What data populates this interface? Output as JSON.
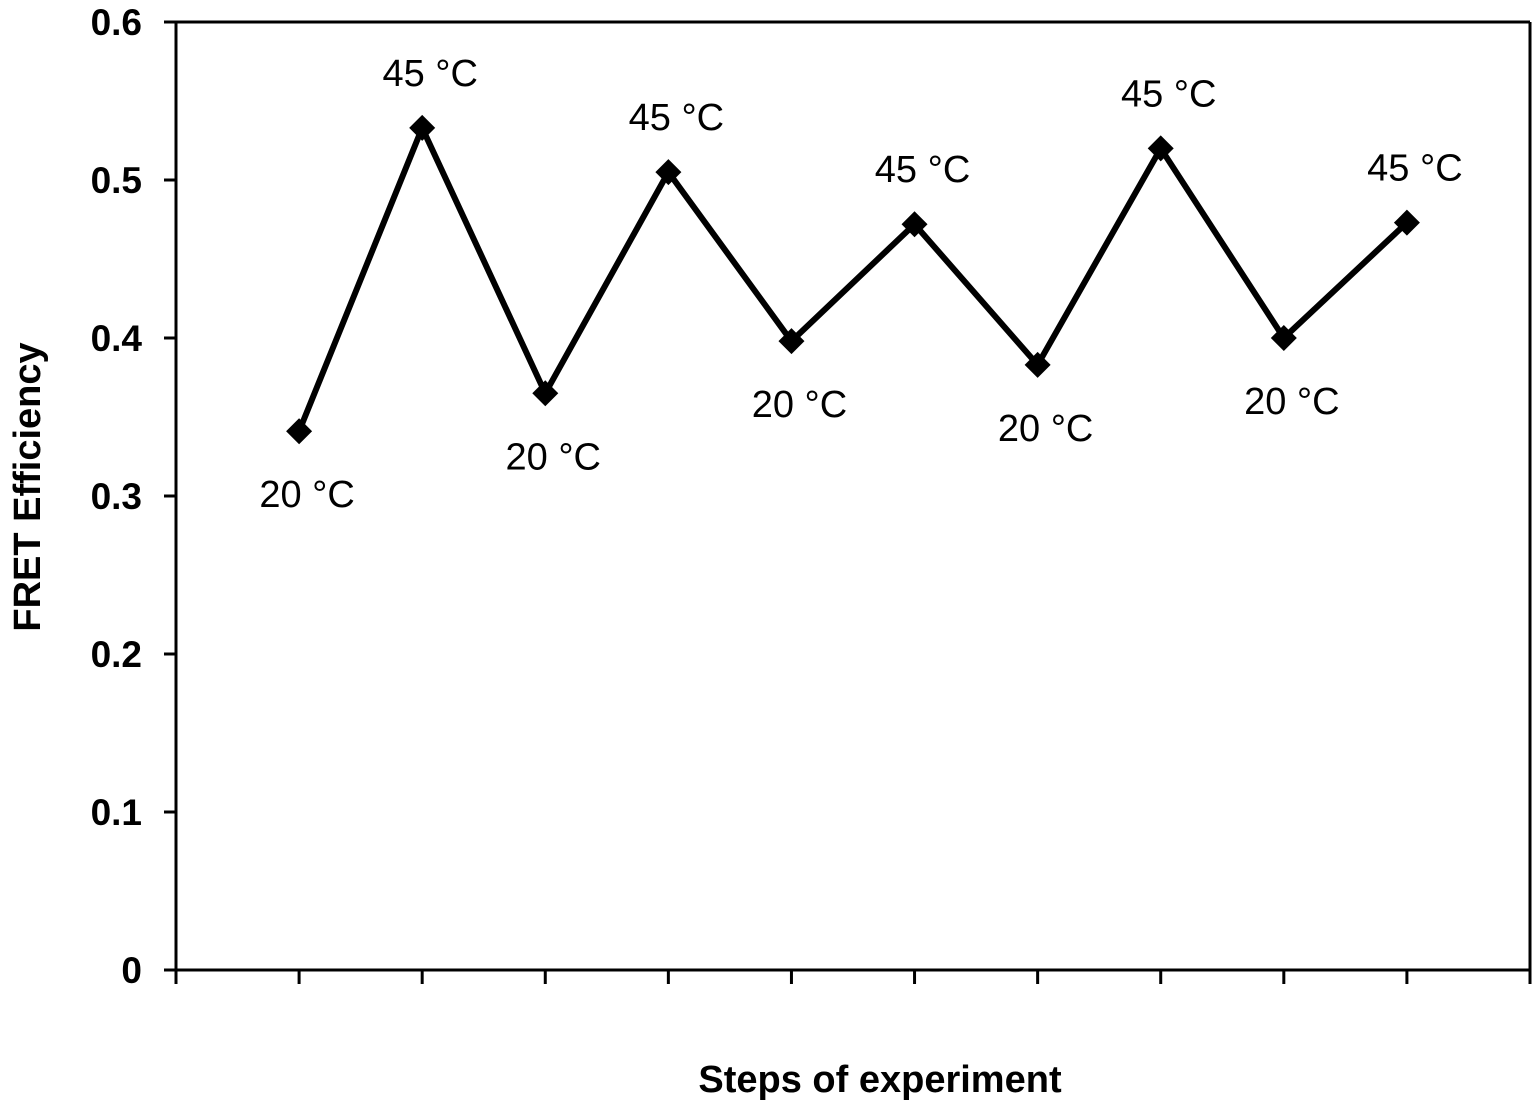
{
  "chart_data": {
    "type": "line",
    "title": "",
    "xlabel": "Steps of experiment",
    "ylabel": "FRET Efficiency",
    "ylim": [
      0,
      0.6
    ],
    "yticks": [
      "0",
      "0.1",
      "0.2",
      "0.3",
      "0.4",
      "0.5",
      "0.6"
    ],
    "grid": false,
    "legend": false,
    "series": [
      {
        "values": [
          0.341,
          0.533,
          0.365,
          0.505,
          0.398,
          0.472,
          0.383,
          0.52,
          0.4,
          0.473
        ],
        "point_labels": [
          "20 °C",
          "45 °C",
          "20 °C",
          "45 °C",
          "20 °C",
          "45 °C",
          "20 °C",
          "45 °C",
          "20 °C",
          "45 °C"
        ],
        "color": "#000000",
        "marker": "diamond"
      }
    ]
  }
}
